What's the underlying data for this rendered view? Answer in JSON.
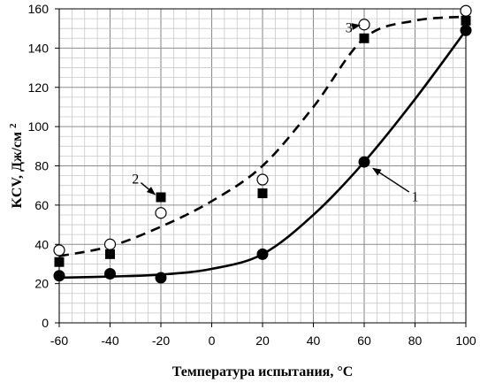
{
  "chart_data": {
    "type": "scatter",
    "xlabel": "Температура испытания, °C",
    "ylabel_main": "KCV, Дж/см",
    "ylabel_sup": "2",
    "xlim": [
      -60,
      100
    ],
    "ylim": [
      0,
      160
    ],
    "x_ticks": [
      "-60",
      "-40",
      "-20",
      "0",
      "20",
      "40",
      "60",
      "80",
      "100"
    ],
    "y_ticks": [
      "0",
      "20",
      "40",
      "60",
      "80",
      "100",
      "120",
      "140",
      "160"
    ],
    "x_tick_values": [
      -60,
      -40,
      -20,
      0,
      20,
      40,
      60,
      80,
      100
    ],
    "y_tick_values": [
      0,
      20,
      40,
      60,
      80,
      100,
      120,
      140,
      160
    ],
    "x_minor_step": 5,
    "y_minor_step": 5,
    "grid": true,
    "series": [
      {
        "marker": "filled-circle",
        "points": [
          [
            -60,
            24
          ],
          [
            -40,
            25
          ],
          [
            -20,
            23
          ],
          [
            20,
            35
          ],
          [
            60,
            82
          ],
          [
            100,
            149
          ]
        ]
      },
      {
        "marker": "filled-square",
        "points": [
          [
            -60,
            31
          ],
          [
            -40,
            35
          ],
          [
            -20,
            64
          ],
          [
            20,
            66
          ],
          [
            60,
            145
          ],
          [
            100,
            154
          ]
        ]
      },
      {
        "marker": "open-circle",
        "points": [
          [
            -60,
            37
          ],
          [
            -40,
            40
          ],
          [
            -20,
            56
          ],
          [
            20,
            73
          ],
          [
            60,
            152
          ],
          [
            100,
            159
          ]
        ]
      }
    ],
    "curves": [
      {
        "style": "solid",
        "points": [
          [
            -60,
            23
          ],
          [
            -40,
            23.6
          ],
          [
            -20,
            24.6
          ],
          [
            0,
            27.5
          ],
          [
            20,
            35
          ],
          [
            40,
            55
          ],
          [
            60,
            82
          ],
          [
            80,
            114
          ],
          [
            100,
            149
          ]
        ]
      },
      {
        "style": "dashed",
        "points": [
          [
            -60,
            34
          ],
          [
            -40,
            39
          ],
          [
            -20,
            49
          ],
          [
            0,
            62
          ],
          [
            20,
            80
          ],
          [
            40,
            110
          ],
          [
            60,
            145
          ],
          [
            80,
            154
          ],
          [
            100,
            156
          ]
        ]
      }
    ],
    "annotations": [
      {
        "text": "1",
        "label_at": [
          80,
          62
        ],
        "arrow_to": [
          62,
          80
        ]
      },
      {
        "text": "2",
        "label_at": [
          -30,
          71
        ],
        "arrow_to": [
          -21,
          64
        ]
      },
      {
        "text": "3",
        "label_at": [
          54,
          148
        ],
        "arrow_to": [
          60,
          152
        ]
      }
    ]
  }
}
